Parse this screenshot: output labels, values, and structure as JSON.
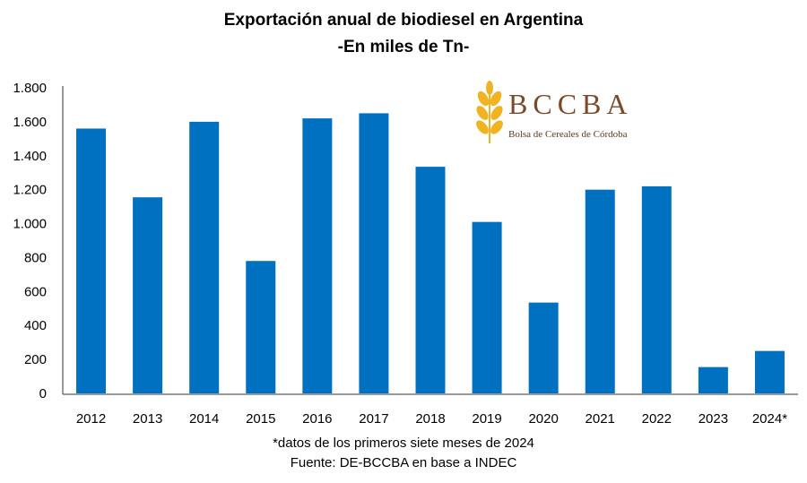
{
  "chart_data": {
    "type": "bar",
    "title": "Exportación anual de biodiesel en Argentina",
    "subtitle": "-En miles de Tn-",
    "categories": [
      "2012",
      "2013",
      "2014",
      "2015",
      "2016",
      "2017",
      "2018",
      "2019",
      "2020",
      "2021",
      "2022",
      "2023",
      "2024*"
    ],
    "values": [
      1560,
      1155,
      1600,
      780,
      1620,
      1650,
      1335,
      1010,
      535,
      1200,
      1220,
      155,
      250
    ],
    "ylim": [
      0,
      1800
    ],
    "yticks": [
      0,
      200,
      400,
      600,
      800,
      1000,
      1200,
      1400,
      1600,
      1800
    ],
    "ytick_labels": [
      "0",
      "200",
      "400",
      "600",
      "800",
      "1.000",
      "1.200",
      "1.400",
      "1.600",
      "1.800"
    ],
    "xlabel": "",
    "ylabel": "",
    "grid": false,
    "bar_color": "#0070C0",
    "footnote": "*datos de los primeros siete meses de  2024",
    "source": "Fuente: DE-BCCBA en base a INDEC"
  },
  "logo": {
    "name": "BCCBA",
    "subtitle": "Bolsa de Cereales de Córdoba",
    "icon": "wheat-icon"
  }
}
